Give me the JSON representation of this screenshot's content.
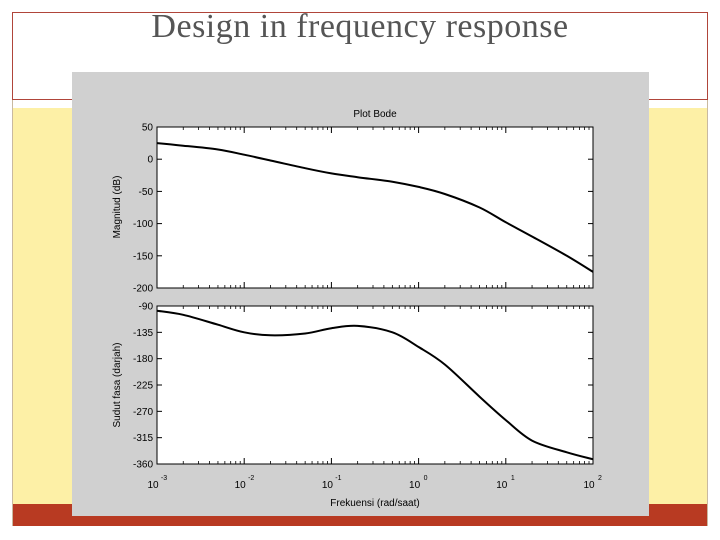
{
  "slide": {
    "title": "Design in frequency response",
    "colors": {
      "background": "#ffffff",
      "accent_yellow": "#fdf0a6",
      "accent_red": "#b83a22",
      "title_text": "#555555",
      "figure_bg": "#d0d0d0"
    }
  },
  "chart_data": {
    "type": "line",
    "title": "Plot Bode",
    "xlabel": "Frekuensi (rad/saat)",
    "xscale": "log",
    "xlim": [
      0.001,
      100
    ],
    "x_ticks": [
      {
        "base": "10",
        "exp": "-3",
        "value": 0.001
      },
      {
        "base": "10",
        "exp": "-2",
        "value": 0.01
      },
      {
        "base": "10",
        "exp": "-1",
        "value": 0.1
      },
      {
        "base": "10",
        "exp": "0",
        "value": 1
      },
      {
        "base": "10",
        "exp": "1",
        "value": 10
      },
      {
        "base": "10",
        "exp": "2",
        "value": 100
      }
    ],
    "grid": false,
    "magnitude": {
      "ylabel": "Magnitud (dB)",
      "ylim": [
        -200,
        50
      ],
      "y_ticks": [
        50,
        0,
        -50,
        -100,
        -150,
        -200
      ],
      "x": [
        0.001,
        0.002,
        0.005,
        0.01,
        0.02,
        0.05,
        0.1,
        0.2,
        0.5,
        1,
        2,
        5,
        10,
        20,
        50,
        100
      ],
      "y": [
        25,
        21,
        15,
        7,
        -2,
        -14,
        -22,
        -28,
        -35,
        -43,
        -54,
        -75,
        -98,
        -120,
        -150,
        -175
      ]
    },
    "phase": {
      "ylabel": "Sudut fasa (darjah)",
      "ylim": [
        -360,
        -90
      ],
      "y_ticks": [
        -90,
        -135,
        -180,
        -225,
        -270,
        -315,
        -360
      ],
      "x": [
        0.001,
        0.002,
        0.005,
        0.01,
        0.02,
        0.05,
        0.1,
        0.2,
        0.5,
        1,
        2,
        5,
        10,
        20,
        50,
        100
      ],
      "y": [
        -98,
        -105,
        -122,
        -135,
        -140,
        -137,
        -128,
        -124,
        -135,
        -160,
        -190,
        -245,
        -285,
        -320,
        -340,
        -352
      ]
    }
  }
}
